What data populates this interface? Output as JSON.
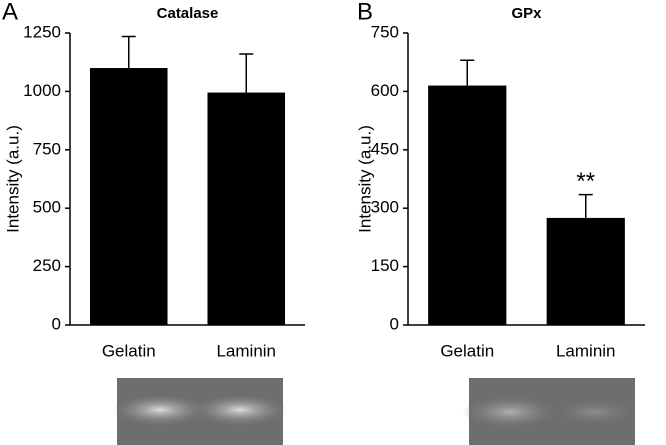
{
  "chart_data": [
    {
      "type": "bar",
      "panel_label": "A",
      "title": "Catalase",
      "y_label": "Intensity (a.u.)",
      "categories": [
        "Gelatin",
        "Laminin"
      ],
      "values": [
        1100,
        995
      ],
      "errors": [
        135,
        165
      ],
      "value_annotations": [
        null,
        null
      ],
      "color": "#000000",
      "ylim": [
        0,
        1250
      ],
      "yticks": [
        0,
        250,
        500,
        750,
        1000,
        1250
      ]
    },
    {
      "type": "bar",
      "panel_label": "B",
      "title": "GPx",
      "y_label": "Intensity (a.u.)",
      "categories": [
        "Gelatin",
        "Laminin"
      ],
      "values": [
        615,
        275
      ],
      "errors": [
        65,
        60
      ],
      "value_annotations": [
        null,
        "**"
      ],
      "color": "#000000",
      "ylim": [
        0,
        750
      ],
      "yticks": [
        0,
        150,
        300,
        450,
        600,
        750
      ]
    }
  ]
}
